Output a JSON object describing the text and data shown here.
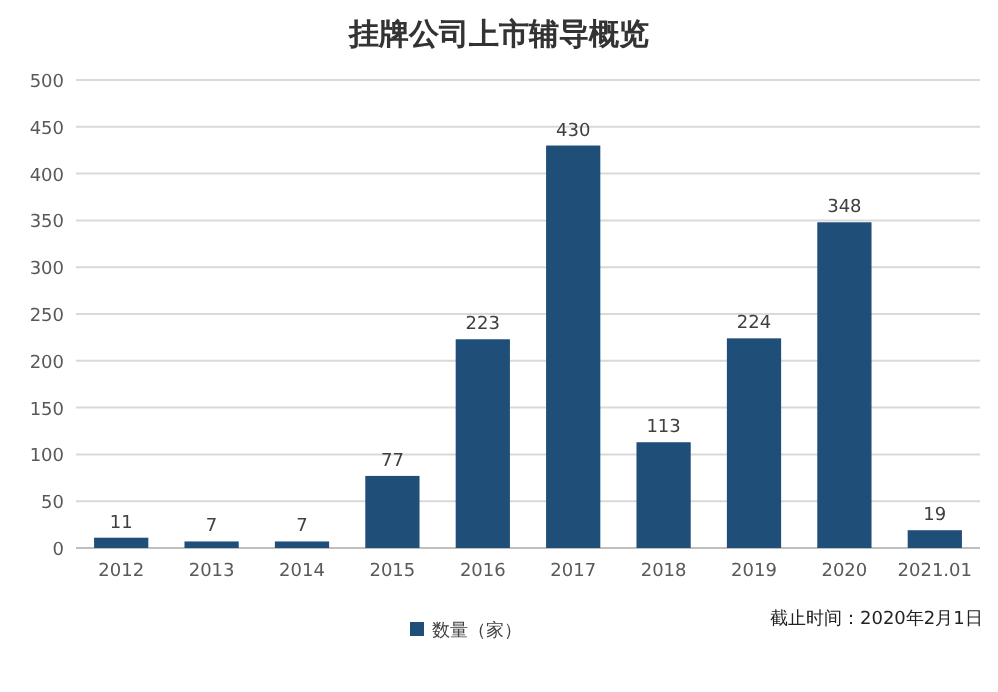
{
  "chart_data": {
    "type": "bar",
    "title": "挂牌公司上市辅导概览",
    "categories": [
      "2012",
      "2013",
      "2014",
      "2015",
      "2016",
      "2017",
      "2018",
      "2019",
      "2020",
      "2021.01"
    ],
    "series": [
      {
        "name": "数量（家）",
        "color": "#1f4e79",
        "values": [
          11,
          7,
          7,
          77,
          223,
          430,
          113,
          224,
          348,
          19
        ]
      }
    ],
    "ylim": [
      0,
      500
    ],
    "yticks": [
      0,
      50,
      100,
      150,
      200,
      250,
      300,
      350,
      400,
      450,
      500
    ],
    "grid": "y",
    "data_labels": true,
    "legend": "bottom",
    "annotations": [
      "截止时间：2020年2月1日"
    ]
  }
}
